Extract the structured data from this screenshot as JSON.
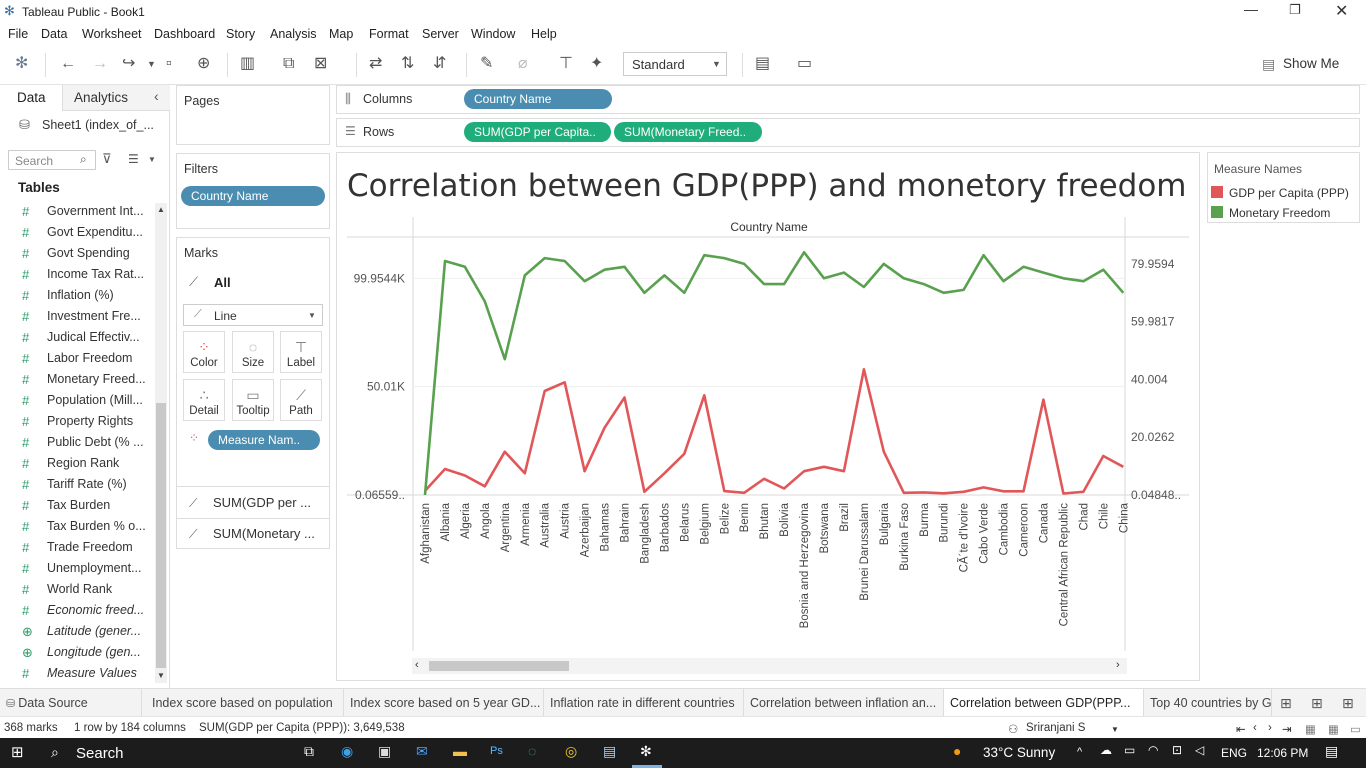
{
  "window": {
    "title": "Tableau Public - Book1"
  },
  "menu": [
    "File",
    "Data",
    "Worksheet",
    "Dashboard",
    "Story",
    "Analysis",
    "Map",
    "Format",
    "Server",
    "Window",
    "Help"
  ],
  "toolbar": {
    "fit_value": "Standard",
    "show_me": "Show Me"
  },
  "left_pane": {
    "tab_data": "Data",
    "tab_analytics": "Analytics",
    "source": "Sheet1 (index_of_...",
    "search_placeholder": "Search",
    "tables_label": "Tables",
    "fields": [
      {
        "name": "Government Int...",
        "type": "measure"
      },
      {
        "name": "Govt Expenditu...",
        "type": "measure"
      },
      {
        "name": "Govt Spending",
        "type": "measure"
      },
      {
        "name": "Income Tax Rat...",
        "type": "measure"
      },
      {
        "name": "Inflation (%)",
        "type": "measure"
      },
      {
        "name": "Investment Fre...",
        "type": "measure"
      },
      {
        "name": "Judical Effectiv...",
        "type": "measure"
      },
      {
        "name": "Labor Freedom",
        "type": "measure"
      },
      {
        "name": "Monetary Freed...",
        "type": "measure"
      },
      {
        "name": "Population (Mill...",
        "type": "measure"
      },
      {
        "name": "Property Rights",
        "type": "measure"
      },
      {
        "name": "Public Debt (% ...",
        "type": "measure"
      },
      {
        "name": "Region Rank",
        "type": "measure"
      },
      {
        "name": "Tariff Rate (%)",
        "type": "measure"
      },
      {
        "name": "Tax Burden",
        "type": "measure"
      },
      {
        "name": "Tax Burden % o...",
        "type": "measure"
      },
      {
        "name": "Trade Freedom",
        "type": "measure"
      },
      {
        "name": "Unemployment...",
        "type": "measure"
      },
      {
        "name": "World Rank",
        "type": "measure"
      },
      {
        "name": "Economic freed...",
        "type": "calc"
      },
      {
        "name": "Latitude (gener...",
        "type": "geo"
      },
      {
        "name": "Longitude (gen...",
        "type": "geo"
      },
      {
        "name": "Measure Values",
        "type": "calc"
      }
    ]
  },
  "shelves": {
    "pages": "Pages",
    "filters": "Filters",
    "filter_pill": "Country Name",
    "marks": "Marks",
    "marks_all": "All",
    "mark_type": "Line",
    "mark_buttons": [
      "Color",
      "Size",
      "Label",
      "Detail",
      "Tooltip",
      "Path"
    ],
    "color_pill": "Measure Nam..",
    "marks_cards": [
      "SUM(GDP per ...",
      "SUM(Monetary ..."
    ],
    "columns_label": "Columns",
    "rows_label": "Rows",
    "columns_pill": "Country Name",
    "rows_pills": [
      "SUM(GDP per Capita..",
      "SUM(Monetary Freed.."
    ]
  },
  "legend": {
    "title": "Measure Names",
    "items": [
      {
        "label": "GDP per Capita (PPP)",
        "color": "#e15759"
      },
      {
        "label": "Monetary Freedom",
        "color": "#59a14f"
      }
    ]
  },
  "chart_data": {
    "type": "line",
    "title": "Correlation between GDP(PPP) and monetory freedom",
    "xlabel": "Country Name",
    "x": [
      "Afghanistan",
      "Albania",
      "Algeria",
      "Angola",
      "Argentina",
      "Armenia",
      "Australia",
      "Austria",
      "Azerbaijan",
      "Bahamas",
      "Bahrain",
      "Bangladesh",
      "Barbados",
      "Belarus",
      "Belgium",
      "Belize",
      "Benin",
      "Bhutan",
      "Bolivia",
      "Bosnia and Herzegovina",
      "Botswana",
      "Brazil",
      "Brunei Darussalam",
      "Bulgaria",
      "Burkina Faso",
      "Burma",
      "Burundi",
      "CÃ´te d'Ivoire",
      "Cabo Verde",
      "Cambodia",
      "Cameroon",
      "Canada",
      "Central African Republic",
      "Chad",
      "Chile",
      "China"
    ],
    "left_axis": {
      "ticks": [
        "0.06559..",
        "50.01K",
        "99.9544K"
      ],
      "range": [
        0,
        120000
      ]
    },
    "right_axis": {
      "ticks": [
        "0.04848..",
        "20.0262",
        "40.004",
        "59.9817",
        "79.9594"
      ],
      "range": [
        0,
        90
      ]
    },
    "series": [
      {
        "name": "GDP per Capita (PPP)",
        "axis": "left",
        "color": "#e15759",
        "values": [
          1900,
          12000,
          9000,
          4000,
          20000,
          10000,
          48000,
          52000,
          11000,
          31000,
          45000,
          1500,
          10000,
          19000,
          46000,
          1800,
          1000,
          7500,
          3000,
          11000,
          13000,
          11000,
          58000,
          20000,
          1000,
          1200,
          800,
          1500,
          3500,
          1700,
          1700,
          44000,
          700,
          1500,
          18000,
          13000
        ]
      },
      {
        "name": "Monetary Freedom",
        "axis": "right",
        "color": "#59a14f",
        "values": [
          0,
          81,
          79,
          67,
          47,
          76,
          82,
          81,
          74,
          78,
          79,
          70,
          76,
          70,
          83,
          82,
          80,
          73,
          73,
          84,
          75,
          77,
          72,
          80,
          75,
          73,
          70,
          71,
          83,
          74,
          79,
          77,
          75,
          74,
          78,
          70
        ]
      }
    ]
  },
  "sheet_tabs": {
    "data_source": "Data Source",
    "tabs": [
      "Index score based on population",
      "Index score based on 5 year GD...",
      "Inflation rate in different countries",
      "Correlation between inflation an...",
      "Correlation between GDP(PPP...",
      "Top 40 countries by G"
    ]
  },
  "status": {
    "marks": "368 marks",
    "rows_cols": "1 row by 184 columns",
    "sum": "SUM(GDP per Capita (PPP)): 3,649,538",
    "user": "Sriranjani S"
  },
  "taskbar": {
    "search": "Search",
    "weather": "33°C  Sunny",
    "lang": "ENG",
    "time": "12:06 PM"
  }
}
